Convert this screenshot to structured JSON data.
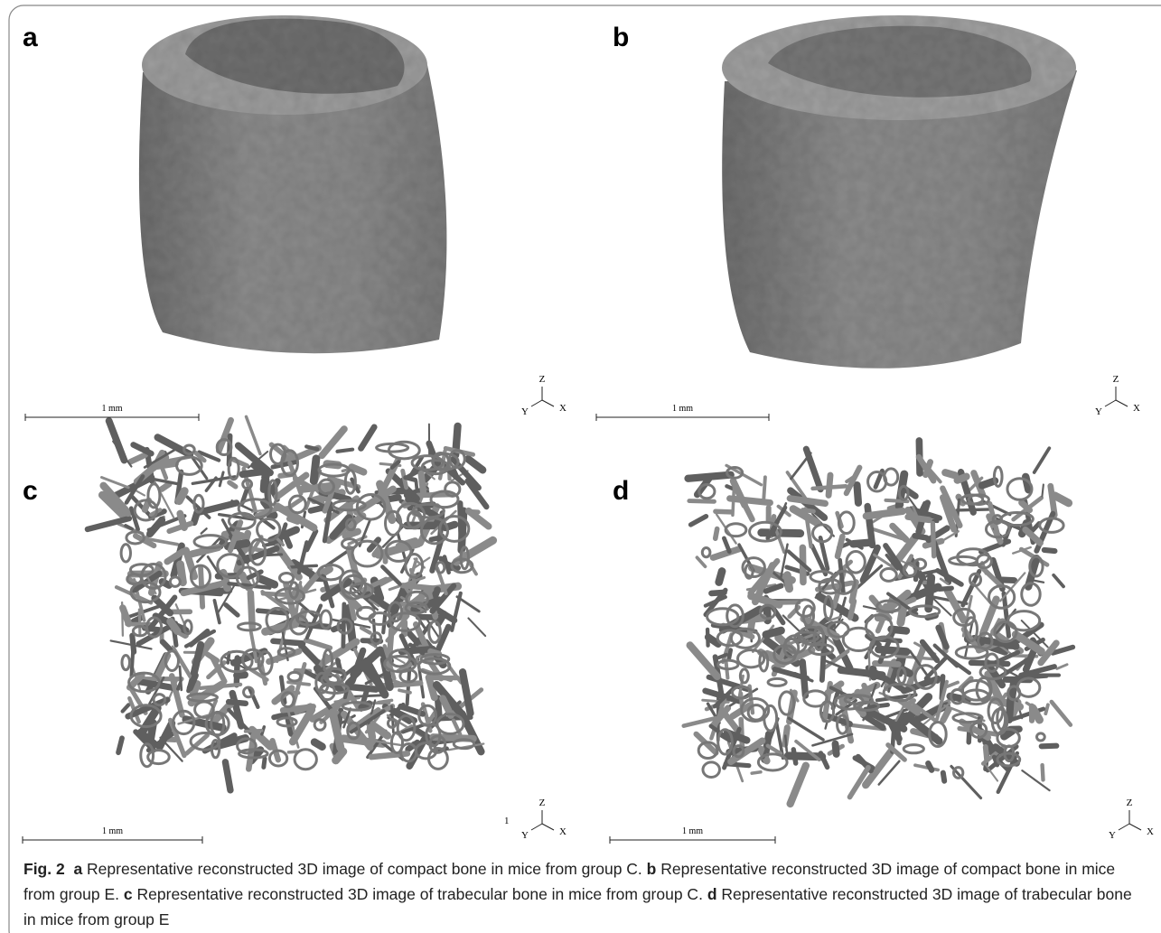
{
  "panels": [
    {
      "label": "a",
      "scale_bar": "1 mm",
      "axes": {
        "z": "Z",
        "y": "Y",
        "x": "X"
      }
    },
    {
      "label": "b",
      "scale_bar": "1 mm",
      "axes": {
        "z": "Z",
        "y": "Y",
        "x": "X"
      }
    },
    {
      "label": "c",
      "scale_bar": "1 mm",
      "axes": {
        "z": "Z",
        "y": "Y",
        "x": "X"
      },
      "note": "1"
    },
    {
      "label": "d",
      "scale_bar": "1 mm",
      "axes": {
        "z": "Z",
        "y": "Y",
        "x": "X"
      }
    }
  ],
  "caption": {
    "figure": "Fig. 2",
    "parts": [
      {
        "label": "a",
        "text": "Representative reconstructed 3D image of compact bone in mice from group C."
      },
      {
        "label": "b",
        "text": "Representative reconstructed 3D image of compact bone in mice from group E."
      },
      {
        "label": "c",
        "text": "Representative reconstructed 3D image of trabecular bone in mice from group C."
      },
      {
        "label": "d",
        "text": "Representative reconstructed 3D image of trabecular bone in mice from group E"
      }
    ]
  }
}
